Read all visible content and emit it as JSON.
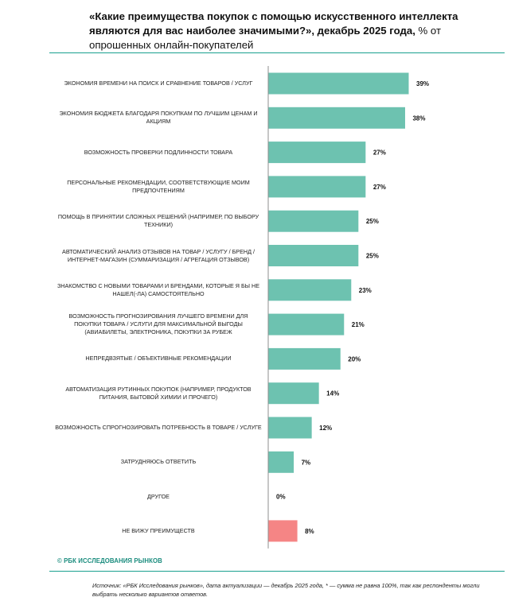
{
  "header": {
    "title_bold": "«Какие преимущества покупок с помощью искусственного интеллекта являются для вас наиболее значимыми?», декабрь 2025 года,",
    "title_normal": " % от опрошенных онлайн-покупателей"
  },
  "colors": {
    "bar": "#6dc2b0",
    "highlight": "#f58585",
    "axis": "#8f8f8f",
    "accent": "#1aa08f"
  },
  "chart_data": {
    "type": "bar",
    "orientation": "horizontal",
    "title": "«Какие преимущества покупок с помощью искусственного интеллекта являются для вас наиболее значимыми?», декабрь 2025 года, % от опрошенных онлайн-покупателей",
    "value_suffix": "%",
    "xlim": [
      0,
      40
    ],
    "grid": false,
    "categories": [
      "Экономия времени на поиск и сравнение товаров / услуг",
      "Экономия бюджета благодаря покупкам по лучшим ценам и акциям",
      "Возможность проверки подлинности товара",
      "Персональные рекомендации, соответствующие моим предпочтениям",
      "Помощь в принятии сложных решений (например, по выбору техники)",
      "Автоматический анализ отзывов на товар / услугу / бренд / интернет-магазин (суммаризация / агрегация отзывов)",
      "Знакомство с новыми товарами и брендами, которые я бы не нашел(-ла) самостоятельно",
      "Возможность прогнозирования лучшего времени для покупки товара / услуги для максимальной выгоды (авиабилеты, электроника, покупки за рубеж",
      "Непредвзятые / объективные рекомендации",
      "Автоматизация рутинных покупок (например, продуктов питания, бытовой химии и прочего)",
      "Возможность спрогнозировать потребность в товаре / услуге",
      "Затрудняюсь ответить",
      "Другое",
      "Не вижу преимуществ"
    ],
    "values": [
      39,
      38,
      27,
      27,
      25,
      25,
      23,
      21,
      20,
      14,
      12,
      7,
      0,
      8
    ],
    "highlighted_category": "Не вижу преимуществ"
  },
  "footer": {
    "brand": "© РБК ИССЛЕДОВАНИЯ РЫНКОВ",
    "source": "Источник: «РБК Исследования рынков», дата актуализации — декабрь 2025 года, * — сумма не равна 100%, так как респонденты могли выбрать несколько вариантов ответов."
  }
}
